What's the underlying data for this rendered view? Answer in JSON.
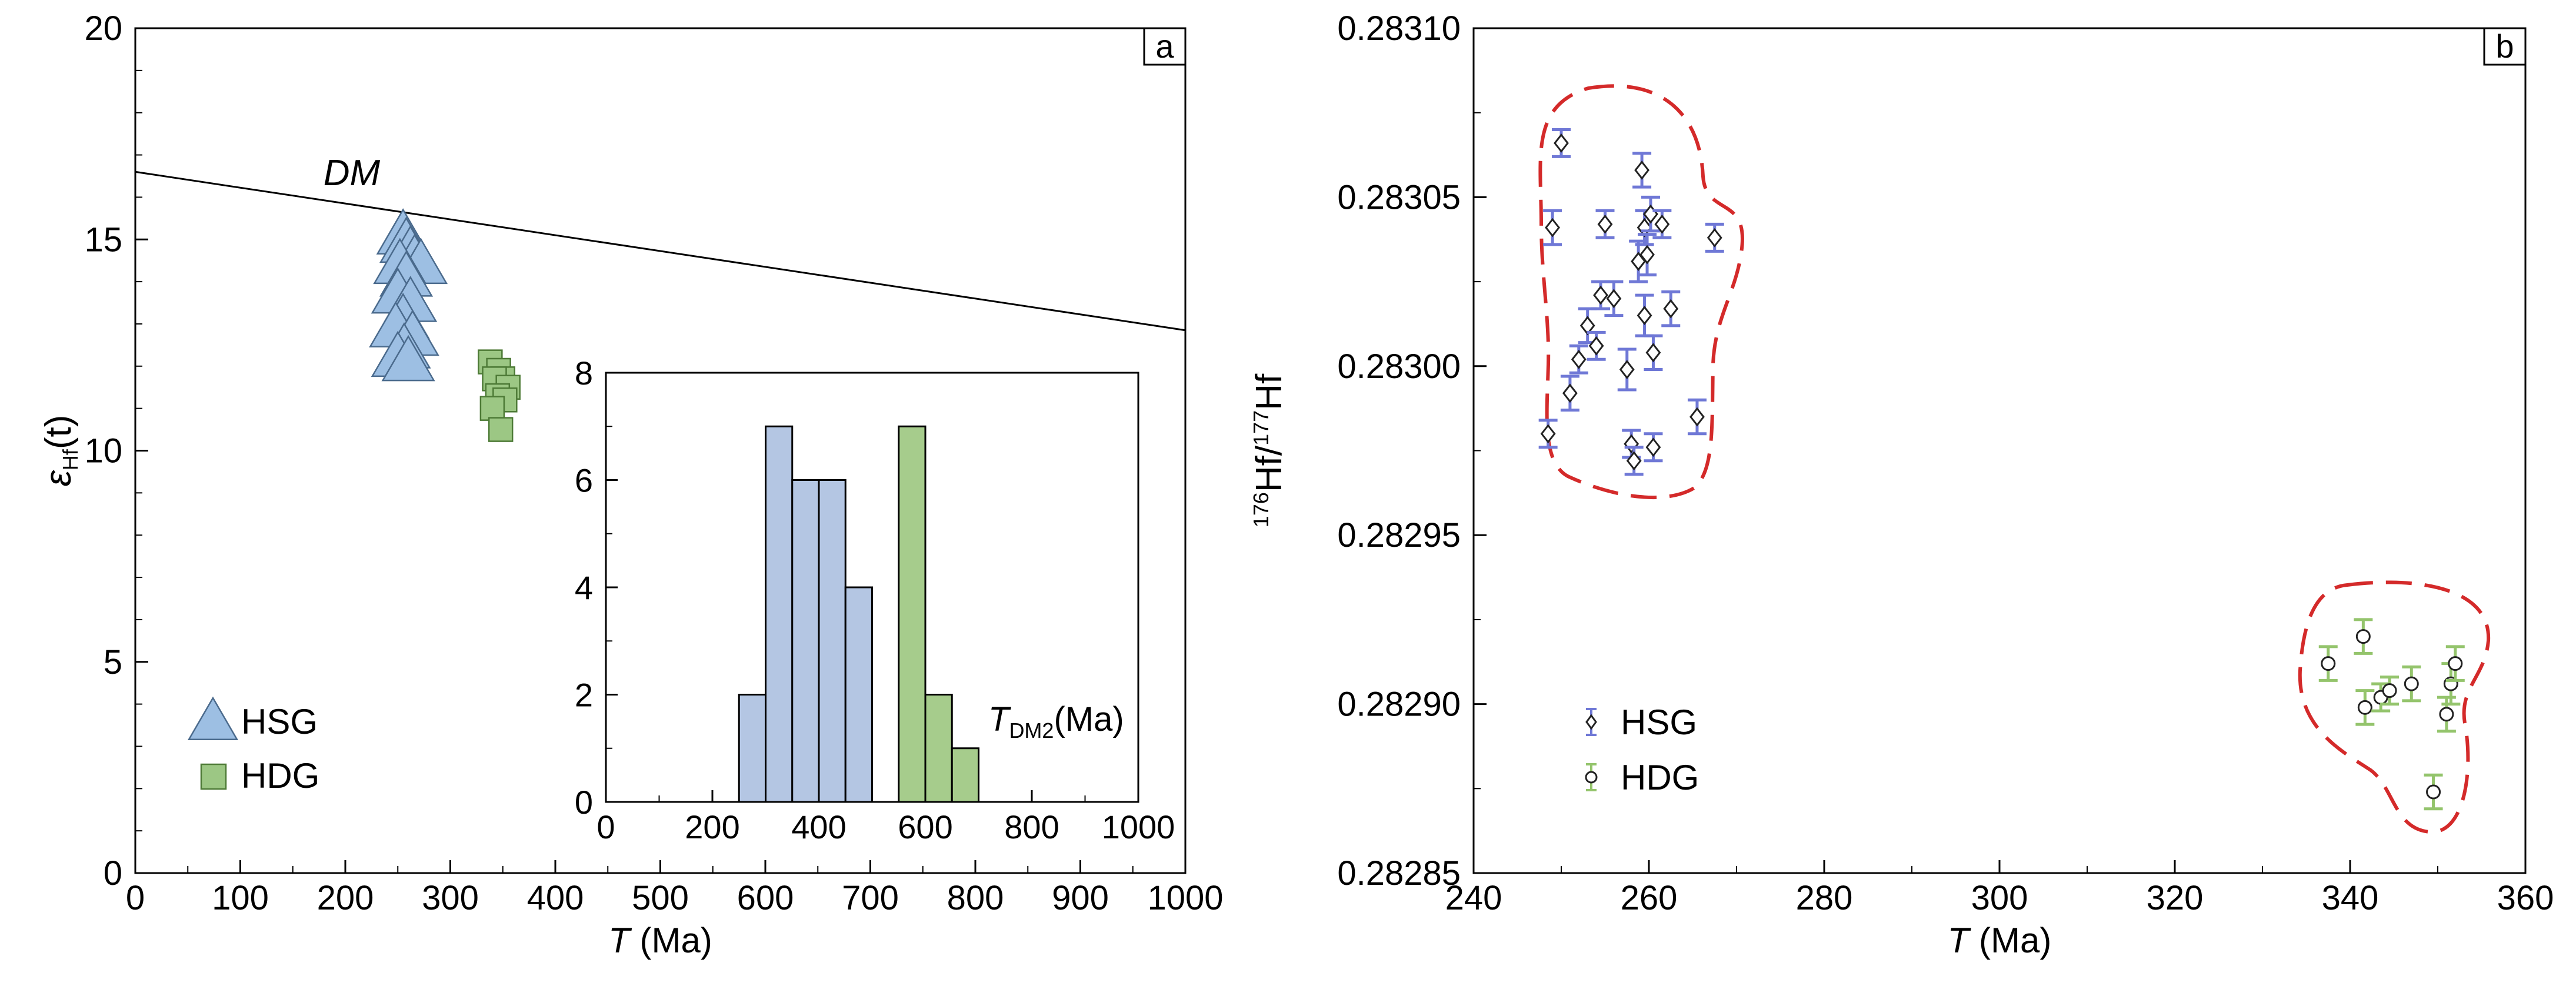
{
  "chart_data": [
    {
      "panel": "a",
      "type": "scatter",
      "xlabel": "T",
      "xunit": "(Ma)",
      "ylabel": "ε",
      "ylabel_sub": "Hf",
      "ylabel_tail": "(t)",
      "xlim": [
        0,
        1000
      ],
      "ylim": [
        0,
        20
      ],
      "xticks": [
        0,
        100,
        200,
        300,
        400,
        500,
        600,
        700,
        800,
        900,
        1000
      ],
      "yticks": [
        0,
        5,
        10,
        15,
        20
      ],
      "reference_line": {
        "label": "DM",
        "x": [
          0,
          1000
        ],
        "y": [
          16.6,
          12.85
        ]
      },
      "series": [
        {
          "name": "HSG",
          "marker": "triangle",
          "color": "#9dbfe3",
          "points": [
            [
              255,
              15.1
            ],
            [
              258,
              14.9
            ],
            [
              262,
              14.7
            ],
            [
              266,
              14.5
            ],
            [
              272,
              14.4
            ],
            [
              252,
              14.4
            ],
            [
              258,
              14.1
            ],
            [
              250,
              13.7
            ],
            [
              262,
              13.5
            ],
            [
              255,
              13.1
            ],
            [
              248,
              12.9
            ],
            [
              264,
              12.7
            ],
            [
              256,
              12.4
            ],
            [
              250,
              12.2
            ],
            [
              260,
              12.1
            ]
          ]
        },
        {
          "name": "HDG",
          "marker": "square",
          "color": "#9cc784",
          "points": [
            [
              338,
              12.1
            ],
            [
              346,
              11.9
            ],
            [
              350,
              11.7
            ],
            [
              342,
              11.7
            ],
            [
              355,
              11.5
            ],
            [
              345,
              11.3
            ],
            [
              352,
              11.2
            ],
            [
              340,
              11.0
            ],
            [
              348,
              10.5
            ]
          ]
        }
      ],
      "legend": {
        "position": "bottom-left",
        "entries": [
          "HSG",
          "HDG"
        ]
      },
      "inset": {
        "type": "bar",
        "xlabel": "T",
        "xlabel_sub": "DM2",
        "xunit": "(Ma)",
        "xlim": [
          0,
          1000
        ],
        "ylim": [
          0,
          8
        ],
        "xticks": [
          0,
          200,
          400,
          600,
          800,
          1000
        ],
        "yticks": [
          0,
          2,
          4,
          6,
          8
        ],
        "bin_width": 50,
        "series": [
          {
            "name": "HSG",
            "color": "#b4c6e3",
            "bins": [
              [
                250,
                300,
                2
              ],
              [
                300,
                350,
                7
              ],
              [
                350,
                400,
                6
              ],
              [
                400,
                450,
                6
              ],
              [
                450,
                500,
                4
              ]
            ]
          },
          {
            "name": "HDG",
            "color": "#a6cc8c",
            "bins": [
              [
                550,
                600,
                7
              ],
              [
                600,
                650,
                2
              ],
              [
                650,
                700,
                1
              ]
            ]
          }
        ]
      }
    },
    {
      "panel": "b",
      "type": "scatter",
      "xlabel": "T",
      "xunit": "(Ma)",
      "ylabel_sup1": "176",
      "ylabel_mid": "Hf/",
      "ylabel_sup2": "177",
      "ylabel_tail": "Hf",
      "xlim": [
        240,
        360
      ],
      "ylim": [
        0.28285,
        0.2831
      ],
      "xticks": [
        240,
        260,
        280,
        300,
        320,
        340,
        360
      ],
      "yticks": [
        "0.28285",
        "0.28290",
        "0.28295",
        "0.28300",
        "0.28305",
        "0.28310"
      ],
      "series": [
        {
          "name": "HSG",
          "marker": "diamond",
          "color": "#6f78d6",
          "points": [
            {
              "x": 248.5,
              "y": 0.28298,
              "err": 4e-06
            },
            {
              "x": 249,
              "y": 0.283041,
              "err": 5e-06
            },
            {
              "x": 250,
              "y": 0.283066,
              "err": 4e-06
            },
            {
              "x": 251,
              "y": 0.282992,
              "err": 5e-06
            },
            {
              "x": 252,
              "y": 0.283002,
              "err": 4e-06
            },
            {
              "x": 253,
              "y": 0.283012,
              "err": 5e-06
            },
            {
              "x": 254,
              "y": 0.283006,
              "err": 4e-06
            },
            {
              "x": 254.5,
              "y": 0.283021,
              "err": 4e-06
            },
            {
              "x": 255,
              "y": 0.283042,
              "err": 4e-06
            },
            {
              "x": 256,
              "y": 0.28302,
              "err": 5e-06
            },
            {
              "x": 257.5,
              "y": 0.282999,
              "err": 6e-06
            },
            {
              "x": 258,
              "y": 0.282977,
              "err": 4e-06
            },
            {
              "x": 258.3,
              "y": 0.282972,
              "err": 4e-06
            },
            {
              "x": 258.8,
              "y": 0.283031,
              "err": 6e-06
            },
            {
              "x": 259.2,
              "y": 0.283058,
              "err": 5e-06
            },
            {
              "x": 259.5,
              "y": 0.283041,
              "err": 5e-06
            },
            {
              "x": 259.5,
              "y": 0.283015,
              "err": 6e-06
            },
            {
              "x": 259.8,
              "y": 0.283033,
              "err": 6e-06
            },
            {
              "x": 260.2,
              "y": 0.283045,
              "err": 5e-06
            },
            {
              "x": 260.5,
              "y": 0.283004,
              "err": 5e-06
            },
            {
              "x": 260.5,
              "y": 0.282976,
              "err": 4e-06
            },
            {
              "x": 261.5,
              "y": 0.283042,
              "err": 4e-06
            },
            {
              "x": 262.5,
              "y": 0.283017,
              "err": 5e-06
            },
            {
              "x": 265.5,
              "y": 0.282985,
              "err": 5e-06
            },
            {
              "x": 267.5,
              "y": 0.283038,
              "err": 4e-06
            }
          ]
        },
        {
          "name": "HDG",
          "marker": "circle",
          "color": "#94c46c",
          "points": [
            {
              "x": 337.5,
              "y": 0.282912,
              "err": 5e-06
            },
            {
              "x": 341.5,
              "y": 0.28292,
              "err": 5e-06
            },
            {
              "x": 341.7,
              "y": 0.282899,
              "err": 5e-06
            },
            {
              "x": 343.5,
              "y": 0.282902,
              "err": 4e-06
            },
            {
              "x": 344.5,
              "y": 0.282904,
              "err": 4e-06
            },
            {
              "x": 347,
              "y": 0.282906,
              "err": 5e-06
            },
            {
              "x": 349.5,
              "y": 0.282874,
              "err": 5e-06
            },
            {
              "x": 351,
              "y": 0.282897,
              "err": 5e-06
            },
            {
              "x": 351.5,
              "y": 0.282906,
              "err": 6e-06
            },
            {
              "x": 352,
              "y": 0.282912,
              "err": 5e-06
            }
          ]
        }
      ],
      "legend": {
        "position": "bottom-left",
        "entries": [
          "HSG",
          "HDG"
        ]
      }
    }
  ]
}
